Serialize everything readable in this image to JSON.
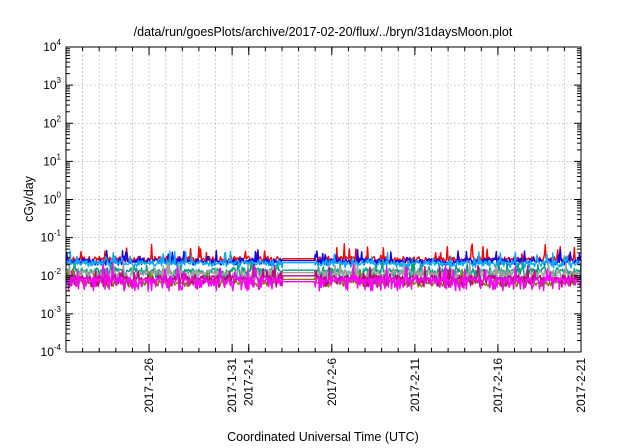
{
  "chart_data": {
    "type": "line",
    "title": "/data/run/goesPlots/archive/2017-02-20/flux/../bryn/31daysMoon.plot",
    "xlabel": "Coordinated Universal Time (UTC)",
    "ylabel": "cGy/day",
    "y_scale": "log",
    "ylim": [
      0.0001,
      10000
    ],
    "y_ticks": [
      {
        "base": "10",
        "exp": "-4",
        "value": 0.0001
      },
      {
        "base": "10",
        "exp": "-3",
        "value": 0.001
      },
      {
        "base": "10",
        "exp": "-2",
        "value": 0.01
      },
      {
        "base": "10",
        "exp": "-1",
        "value": 0.1
      },
      {
        "base": "10",
        "exp": "0",
        "value": 1
      },
      {
        "base": "10",
        "exp": "1",
        "value": 10
      },
      {
        "base": "10",
        "exp": "2",
        "value": 100
      },
      {
        "base": "10",
        "exp": "3",
        "value": 1000
      },
      {
        "base": "10",
        "exp": "4",
        "value": 10000
      }
    ],
    "xlim": [
      "2017-01-21",
      "2017-02-21"
    ],
    "x_ticks": [
      "2017-1-26",
      "2017-1-31",
      "2017-2-1",
      "2017-2-6",
      "2017-2-11",
      "2017-2-16",
      "2017-2-21"
    ],
    "x_tick_dates": [
      "2017-01-26",
      "2017-01-31",
      "2017-02-01",
      "2017-02-06",
      "2017-02-11",
      "2017-02-16",
      "2017-02-21"
    ],
    "grid": true,
    "data_gap": [
      "2017-02-03",
      "2017-02-05"
    ],
    "series": [
      {
        "color": "#ff0000",
        "typical": 0.028,
        "low": 0.022,
        "high": 0.07,
        "gap_level": 0.028
      },
      {
        "color": "#0000ff",
        "typical": 0.025,
        "low": 0.019,
        "high": 0.05,
        "gap_level": 0.025
      },
      {
        "color": "#00aaff",
        "typical": 0.022,
        "low": 0.016,
        "high": 0.045,
        "gap_level": 0.022
      },
      {
        "color": "#00a080",
        "typical": 0.014,
        "low": 0.008,
        "high": 0.028,
        "gap_level": 0.014
      },
      {
        "color": "#a0a0a0",
        "typical": 0.012,
        "low": 0.006,
        "high": 0.025,
        "gap_level": 0.012
      },
      {
        "color": "#808000",
        "typical": 0.007,
        "low": 0.005,
        "high": 0.015,
        "gap_level": 0.008
      },
      {
        "color": "#c00080",
        "typical": 0.009,
        "low": 0.005,
        "high": 0.02,
        "gap_level": 0.01
      },
      {
        "color": "#ff00ff",
        "typical": 0.008,
        "low": 0.004,
        "high": 0.02,
        "gap_level": 0.007
      }
    ]
  }
}
